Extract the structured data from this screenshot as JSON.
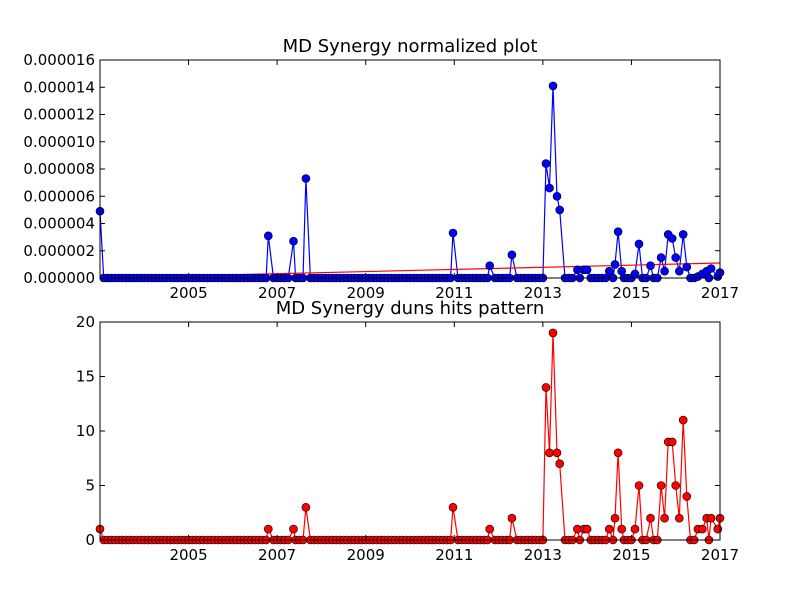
{
  "chart_data": [
    {
      "type": "line",
      "title": "MD Synergy normalized plot",
      "xlabel": "",
      "ylabel": "",
      "xlim": [
        2003.0,
        2017.0
      ],
      "ylim": [
        0,
        1.6e-05
      ],
      "xticks": [
        2005,
        2007,
        2009,
        2011,
        2013,
        2015,
        2017
      ],
      "yticks": [
        "0.000000",
        "0.000002",
        "0.000004",
        "0.000006",
        "0.000008",
        "0.000010",
        "0.000012",
        "0.000014",
        "0.000016"
      ],
      "yticks_values": [
        0,
        2e-06,
        4e-06,
        6e-06,
        8e-06,
        1e-05,
        1.2e-05,
        1.4e-05,
        1.6e-05
      ],
      "grid": false,
      "colors": {
        "series": "#0000ff",
        "trend": "#ff0000"
      },
      "series": [
        {
          "values": [
            [
              2003.0,
              4.9e-06
            ],
            [
              2006.8,
              3.1e-06
            ],
            [
              2007.37,
              2.7e-06
            ],
            [
              2007.65,
              7.3e-06
            ],
            [
              2010.97,
              3.3e-06
            ],
            [
              2011.8,
              9e-07
            ],
            [
              2012.3,
              1.7e-06
            ],
            [
              2013.07,
              8.4e-06
            ],
            [
              2013.15,
              6.6e-06
            ],
            [
              2013.23,
              1.41e-05
            ],
            [
              2013.32,
              6e-06
            ],
            [
              2013.38,
              5e-06
            ],
            [
              2013.78,
              6e-07
            ],
            [
              2013.93,
              6e-07
            ],
            [
              2014.0,
              6e-07
            ],
            [
              2014.5,
              5e-07
            ],
            [
              2014.63,
              1e-06
            ],
            [
              2014.7,
              3.4e-06
            ],
            [
              2014.78,
              5e-07
            ],
            [
              2015.08,
              3e-07
            ],
            [
              2015.17,
              2.5e-06
            ],
            [
              2015.43,
              9e-07
            ],
            [
              2015.67,
              1.5e-06
            ],
            [
              2015.75,
              5e-07
            ],
            [
              2015.83,
              3.2e-06
            ],
            [
              2015.92,
              2.9e-06
            ],
            [
              2016.0,
              1.5e-06
            ],
            [
              2016.08,
              5e-07
            ],
            [
              2016.17,
              3.2e-06
            ],
            [
              2016.25,
              8e-07
            ],
            [
              2016.5,
              1e-07
            ],
            [
              2016.6,
              3e-07
            ],
            [
              2016.7,
              5e-07
            ],
            [
              2016.8,
              7e-07
            ],
            [
              2016.95,
              1e-07
            ],
            [
              2017.0,
              4e-07
            ]
          ]
        }
      ],
      "trend": [
        [
          2003.0,
          0.0
        ],
        [
          2017.0,
          1.1e-06
        ]
      ]
    },
    {
      "type": "line",
      "title": "MD Synergy duns hits pattern",
      "xlabel": "",
      "ylabel": "",
      "xlim": [
        2003.0,
        2017.0
      ],
      "ylim": [
        0,
        20
      ],
      "xticks": [
        2005,
        2007,
        2009,
        2011,
        2013,
        2015,
        2017
      ],
      "yticks": [
        "0",
        "5",
        "10",
        "15",
        "20"
      ],
      "yticks_values": [
        0,
        5,
        10,
        15,
        20
      ],
      "grid": false,
      "colors": {
        "series": "#ff0000"
      },
      "series": [
        {
          "values": [
            [
              2003.0,
              1
            ],
            [
              2006.8,
              1
            ],
            [
              2007.37,
              1
            ],
            [
              2007.65,
              3
            ],
            [
              2010.97,
              3
            ],
            [
              2011.8,
              1
            ],
            [
              2012.3,
              2
            ],
            [
              2013.07,
              14
            ],
            [
              2013.15,
              8
            ],
            [
              2013.23,
              19
            ],
            [
              2013.32,
              8
            ],
            [
              2013.38,
              7
            ],
            [
              2013.78,
              1
            ],
            [
              2013.93,
              1
            ],
            [
              2014.0,
              1
            ],
            [
              2014.5,
              1
            ],
            [
              2014.63,
              2
            ],
            [
              2014.7,
              8
            ],
            [
              2014.78,
              1
            ],
            [
              2015.08,
              1
            ],
            [
              2015.17,
              5
            ],
            [
              2015.43,
              2
            ],
            [
              2015.67,
              5
            ],
            [
              2015.75,
              2
            ],
            [
              2015.83,
              9
            ],
            [
              2015.92,
              9
            ],
            [
              2016.0,
              5
            ],
            [
              2016.08,
              2
            ],
            [
              2016.17,
              11
            ],
            [
              2016.25,
              4
            ],
            [
              2016.5,
              1
            ],
            [
              2016.6,
              1
            ],
            [
              2016.7,
              2
            ],
            [
              2016.8,
              2
            ],
            [
              2016.95,
              1
            ],
            [
              2017.0,
              2
            ]
          ]
        }
      ]
    }
  ]
}
